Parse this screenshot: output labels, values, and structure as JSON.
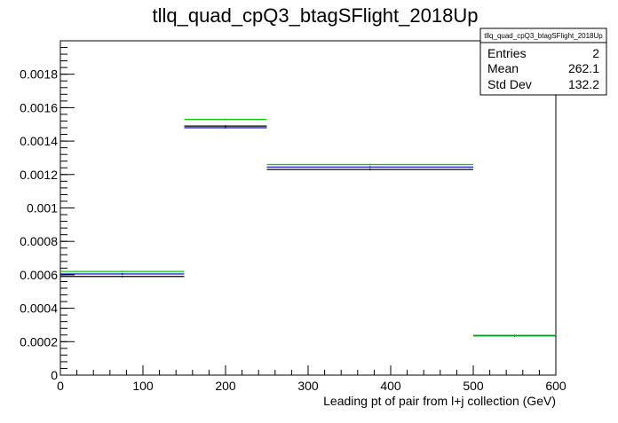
{
  "chart_data": {
    "type": "step-histogram",
    "title": "tllq_quad_cpQ3_btagSFlight_2018Up",
    "xlabel": "Leading pt of pair from l+j collection (GeV)",
    "ylabel": "",
    "xlim": [
      0,
      600
    ],
    "ylim": [
      0,
      0.002
    ],
    "x_ticks": [
      0,
      100,
      200,
      300,
      400,
      500,
      600
    ],
    "y_ticks": [
      0,
      0.0002,
      0.0004,
      0.0006,
      0.0008,
      0.001,
      0.0012,
      0.0014,
      0.0016,
      0.0018
    ],
    "y_tick_labels": [
      "0",
      "0.0002",
      "0.0004",
      "0.0006",
      "0.0008",
      "0.001",
      "0.0012",
      "0.0014",
      "0.0016",
      "0.0018"
    ],
    "bin_edges": [
      0,
      150,
      250,
      500,
      600
    ],
    "series": [
      {
        "color": "#000000",
        "values": [
          0.00059,
          0.00149,
          0.00123,
          0.000235
        ]
      },
      {
        "color": "#0000cc",
        "values": [
          0.000605,
          0.00148,
          0.001245,
          0.000238
        ]
      },
      {
        "color": "#00cc00",
        "values": [
          0.00062,
          0.00153,
          0.00126,
          0.000238
        ]
      }
    ],
    "stats": {
      "name": "tllq_quad_cpQ3_btagSFlight_2018Up",
      "rows": [
        {
          "label": "Entries",
          "value": "2"
        },
        {
          "label": "Mean",
          "value": "262.1"
        },
        {
          "label": "Std Dev",
          "value": "132.2"
        }
      ]
    },
    "grid": false,
    "legend": "stats box top-right"
  }
}
